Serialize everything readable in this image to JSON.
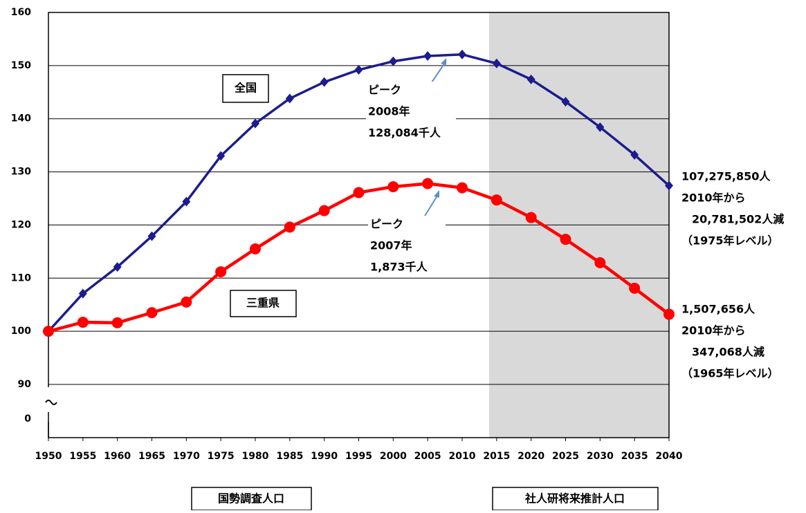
{
  "chart_data": {
    "type": "line",
    "x": [
      1950,
      1955,
      1960,
      1965,
      1970,
      1975,
      1980,
      1985,
      1990,
      1995,
      2000,
      2005,
      2010,
      2015,
      2020,
      2025,
      2030,
      2035,
      2040
    ],
    "xlim": [
      1950,
      2040
    ],
    "xticks": [
      1950,
      1955,
      1960,
      1965,
      1970,
      1975,
      1980,
      1985,
      1990,
      1995,
      2000,
      2005,
      2010,
      2015,
      2020,
      2025,
      2030,
      2035,
      2040
    ],
    "ylim": [
      90,
      160
    ],
    "yticks": [
      0,
      90,
      100,
      110,
      120,
      130,
      140,
      150,
      160
    ],
    "axis_break": true,
    "grid": true,
    "series": [
      {
        "name": "全国",
        "color": "#1c1c8e",
        "marker": "diamond",
        "values": [
          100,
          107.1,
          112.1,
          117.9,
          124.4,
          133.0,
          139.1,
          143.8,
          146.9,
          149.2,
          150.8,
          151.8,
          152.1,
          150.4,
          147.4,
          143.2,
          138.4,
          133.2,
          127.4
        ]
      },
      {
        "name": "三重県",
        "color": "#ff0000",
        "marker": "circle",
        "values": [
          100,
          101.7,
          101.6,
          103.5,
          105.5,
          111.2,
          115.5,
          119.6,
          122.7,
          126.1,
          127.2,
          127.8,
          127.0,
          124.7,
          121.4,
          117.3,
          112.9,
          108.1,
          103.2
        ]
      }
    ],
    "annotations": {
      "national_peak": [
        "ピーク",
        "2008年",
        "128,084千人"
      ],
      "mie_peak": [
        "ピーク",
        "2007年",
        "1,873千人"
      ],
      "national_end": [
        "107,275,850人",
        "2010年から",
        "20,781,502人減",
        "（1975年レベル）"
      ],
      "mie_end": [
        "1,507,656人",
        "2010年から",
        "347,068人減",
        "（1965年レベル）"
      ],
      "census_label": "国勢調査人口",
      "projection_label": "社人研将来推計人口"
    }
  }
}
